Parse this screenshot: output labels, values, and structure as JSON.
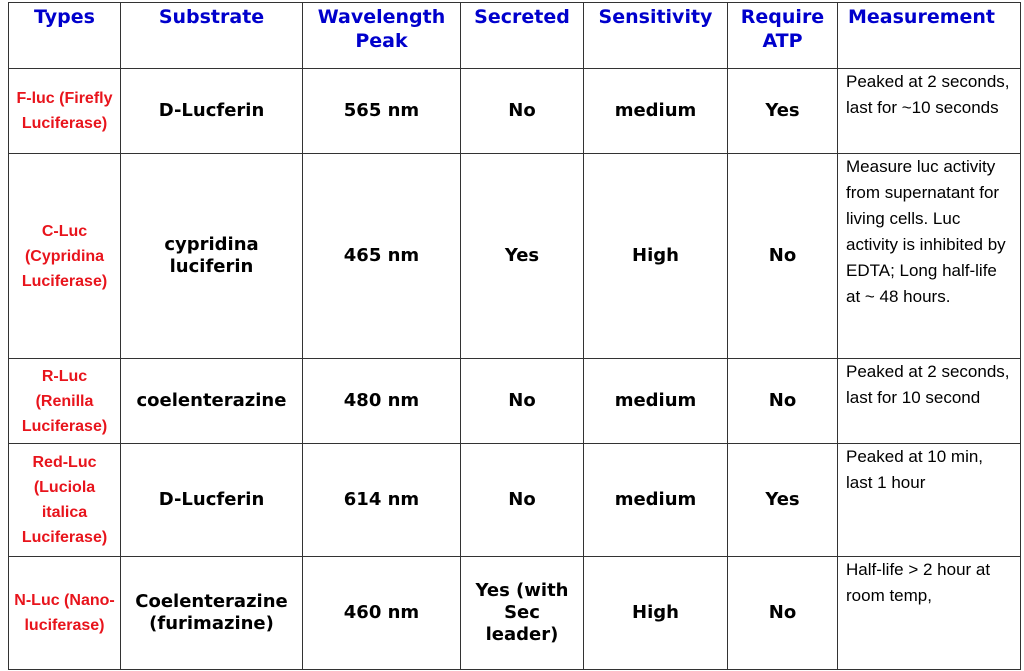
{
  "table": {
    "header": [
      "Types",
      "Substrate",
      "Wavelength Peak",
      "Secreted",
      "Sensitivity",
      "Require ATP",
      "Measurement"
    ],
    "rows": [
      [
        "F-luc (Firefly Luciferase)",
        "D-Lucferin",
        "565 nm",
        "No",
        "medium",
        "Yes",
        "Peaked at 2 seconds, last for ~10 seconds"
      ],
      [
        "C-Luc (Cypridina Luciferase)",
        "cypridina luciferin",
        "465 nm",
        "Yes",
        "High",
        "No",
        "Measure luc activity from supernatant for living cells. Luc activity is inhibited by EDTA; Long half-life at ~ 48 hours."
      ],
      [
        "R-Luc (Renilla Luciferase)",
        "coelenterazine",
        "480 nm",
        "No",
        "medium",
        "No",
        "Peaked at 2 seconds, last for 10 second"
      ],
      [
        "Red-Luc (Luciola italica Luciferase)",
        "D-Lucferin",
        "614 nm",
        "No",
        "medium",
        "Yes",
        "Peaked at 10 min, last 1 hour"
      ],
      [
        "N-Luc (Nano-luciferase)",
        "Coelenterazine (furimazine)",
        "460 nm",
        "Yes (with Sec leader)",
        "High",
        "No",
        "Half-life > 2 hour at room temp,"
      ]
    ]
  }
}
